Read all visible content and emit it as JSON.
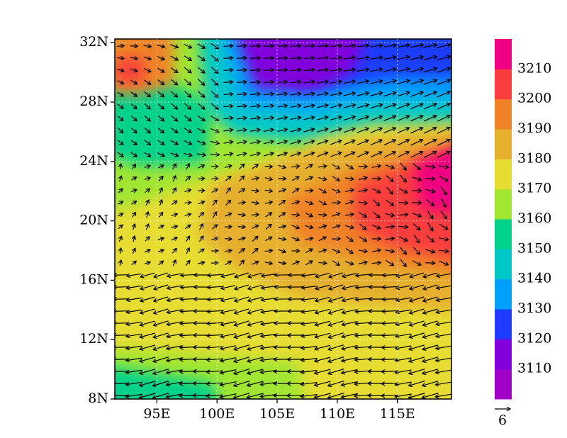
{
  "map": {
    "lon_range": [
      91.5,
      119.5
    ],
    "lat_range": [
      8,
      32.25
    ],
    "lat_ticks": [
      {
        "value": 8,
        "label": "8N"
      },
      {
        "value": 12,
        "label": "12N"
      },
      {
        "value": 16,
        "label": "16N"
      },
      {
        "value": 20,
        "label": "20N"
      },
      {
        "value": 24,
        "label": "24N"
      },
      {
        "value": 28,
        "label": "28N"
      },
      {
        "value": 32,
        "label": "32N"
      }
    ],
    "lon_ticks": [
      {
        "value": 95,
        "label": "95E"
      },
      {
        "value": 100,
        "label": "100E"
      },
      {
        "value": 105,
        "label": "105E"
      },
      {
        "value": 110,
        "label": "110E"
      },
      {
        "value": 115,
        "label": "115E"
      }
    ],
    "colorbar": {
      "levels": [
        3110,
        3120,
        3130,
        3140,
        3150,
        3160,
        3170,
        3180,
        3190,
        3200,
        3210
      ],
      "colors": [
        "#a000c8",
        "#8200dc",
        "#1e3cff",
        "#00a0ff",
        "#00c8c8",
        "#00d28c",
        "#a0e632",
        "#e6dc32",
        "#e6af2d",
        "#f08228",
        "#fa3c3c",
        "#f00082"
      ]
    },
    "reference_vector": {
      "label": "6"
    }
  }
}
